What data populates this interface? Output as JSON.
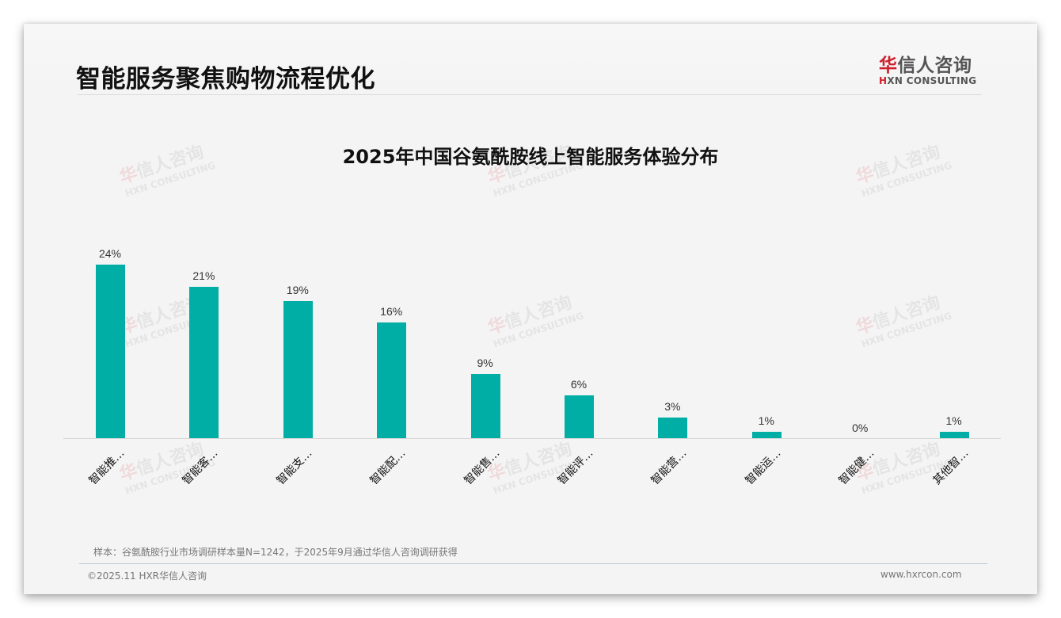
{
  "header": {
    "title": "智能服务聚焦购物流程优化",
    "logo": {
      "cn_first": "华",
      "cn_rest": "信人咨询",
      "en_first": "H",
      "en_rest": "XN CONSULTING"
    }
  },
  "watermark": {
    "cn_first": "华",
    "cn_rest": "信人咨询",
    "en": "HXN CONSULTING"
  },
  "chart_data": {
    "type": "bar",
    "title": "2025年中国谷氨酰胺线上智能服务体验分布",
    "categories": [
      "智能推…",
      "智能客…",
      "智能支…",
      "智能配…",
      "智能售…",
      "智能评…",
      "智能营…",
      "智能运…",
      "智能健…",
      "其他智…"
    ],
    "values": [
      24,
      21,
      19,
      16,
      9,
      6,
      3,
      1,
      0,
      1
    ],
    "value_labels": [
      "24%",
      "21%",
      "19%",
      "16%",
      "9%",
      "6%",
      "3%",
      "1%",
      "0%",
      "1%"
    ],
    "xlabel": "",
    "ylabel": "",
    "ylim": [
      0,
      30
    ],
    "unit": "%",
    "grid": false,
    "legend": "none",
    "bar_color": "#00aea5"
  },
  "footer": {
    "note": "样本：谷氨酰胺行业市场调研样本量N=1242，于2025年9月通过华信人咨询调研获得",
    "copyright": "©2025.11 HXR华信人咨询",
    "website": "www.hxrcon.com"
  }
}
